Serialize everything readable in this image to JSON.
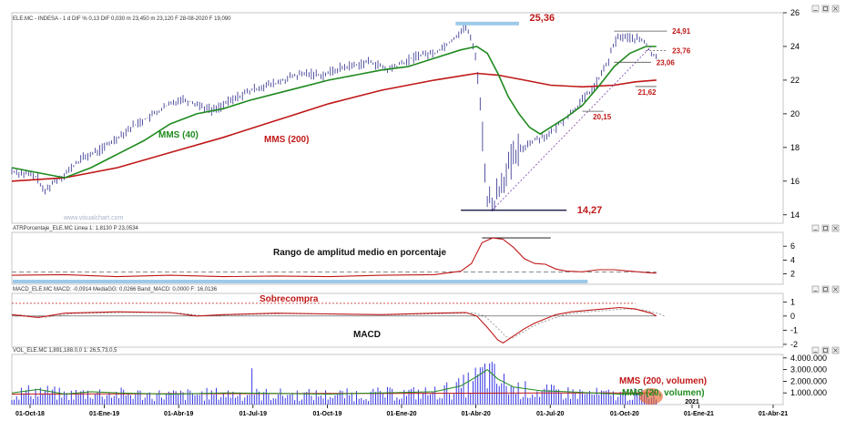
{
  "colors": {
    "price_bars": "#2a2a8a",
    "mms40": "#1f8a1f",
    "mms200": "#c01818",
    "atr": "#c01818",
    "macd": "#c01818",
    "volume": "#2020e0",
    "highlight": "#9ec9ea",
    "guide": "#000033"
  },
  "chart_data": [
    {
      "id": "price",
      "type": "bar",
      "header": "ELE.MC - INDESA - 1 d DIF % 0,13 DIF 0,030 m 23,450 m 23,120 F 28-08-2020 F 19,090",
      "ylim": [
        13.5,
        26
      ],
      "yticks": [
        "26",
        "24",
        "22",
        "20",
        "18",
        "16",
        "14"
      ],
      "watermark": "www.visualchart.com",
      "series": [
        {
          "name": "MMS (40)",
          "label_color": "#1f8a1f"
        },
        {
          "name": "MMS (200)",
          "label_color": "#c01818"
        }
      ],
      "levels": [
        {
          "label": "25,36",
          "value": 25.36
        },
        {
          "label": "24,91",
          "value": 24.91
        },
        {
          "label": "23,76",
          "value": 23.76
        },
        {
          "label": "23,06",
          "value": 23.06
        },
        {
          "label": "21,62",
          "value": 21.62
        },
        {
          "label": "20,15",
          "value": 20.15
        },
        {
          "label": "14,27",
          "value": 14.27
        }
      ],
      "price_path": [
        [
          0,
          16.6
        ],
        [
          3,
          16.4
        ],
        [
          5,
          16.2
        ],
        [
          6,
          15.3
        ],
        [
          8,
          16.0
        ],
        [
          10,
          16.4
        ],
        [
          13,
          17.3
        ],
        [
          17,
          17.9
        ],
        [
          20,
          18.6
        ],
        [
          23,
          19.3
        ],
        [
          26,
          19.8
        ],
        [
          29,
          20.4
        ],
        [
          32,
          20.9
        ],
        [
          35,
          20.6
        ],
        [
          38,
          20.2
        ],
        [
          41,
          20.7
        ],
        [
          44,
          21.2
        ],
        [
          47,
          21.6
        ],
        [
          50,
          21.8
        ],
        [
          53,
          22.2
        ],
        [
          56,
          22.4
        ],
        [
          59,
          22.3
        ],
        [
          62,
          22.7
        ],
        [
          65,
          22.9
        ],
        [
          68,
          23.1
        ],
        [
          71,
          22.6
        ],
        [
          74,
          23.0
        ],
        [
          77,
          23.5
        ],
        [
          80,
          23.6
        ],
        [
          83,
          24.3
        ],
        [
          85,
          24.9
        ],
        [
          86,
          25.2
        ],
        [
          87,
          24.3
        ],
        [
          88,
          23.2
        ],
        [
          89,
          19.0
        ],
        [
          90,
          15.0
        ],
        [
          91,
          14.5
        ],
        [
          92,
          15.5
        ],
        [
          94,
          16.8
        ],
        [
          96,
          17.8
        ],
        [
          98,
          18.3
        ],
        [
          100,
          18.6
        ],
        [
          102,
          18.8
        ],
        [
          104,
          19.5
        ],
        [
          106,
          20.1
        ],
        [
          108,
          20.8
        ],
        [
          110,
          21.5
        ],
        [
          111,
          22.0
        ],
        [
          113,
          23.2
        ],
        [
          114,
          24.2
        ],
        [
          115,
          24.6
        ],
        [
          117,
          24.5
        ],
        [
          119,
          24.4
        ],
        [
          120,
          24.2
        ],
        [
          121,
          23.6
        ],
        [
          122,
          23.3
        ]
      ],
      "mms40_path": [
        [
          0,
          16.8
        ],
        [
          5,
          16.5
        ],
        [
          10,
          16.2
        ],
        [
          15,
          16.8
        ],
        [
          20,
          17.6
        ],
        [
          25,
          18.4
        ],
        [
          30,
          19.4
        ],
        [
          35,
          20.0
        ],
        [
          40,
          20.3
        ],
        [
          45,
          20.8
        ],
        [
          50,
          21.2
        ],
        [
          55,
          21.6
        ],
        [
          60,
          22.0
        ],
        [
          65,
          22.3
        ],
        [
          70,
          22.6
        ],
        [
          75,
          22.8
        ],
        [
          80,
          23.3
        ],
        [
          85,
          23.8
        ],
        [
          88,
          24.0
        ],
        [
          90,
          23.6
        ],
        [
          92,
          22.4
        ],
        [
          94,
          21.0
        ],
        [
          96,
          20.0
        ],
        [
          98,
          19.2
        ],
        [
          100,
          18.8
        ],
        [
          102,
          19.2
        ],
        [
          105,
          19.8
        ],
        [
          108,
          20.5
        ],
        [
          111,
          21.6
        ],
        [
          114,
          22.8
        ],
        [
          117,
          23.6
        ],
        [
          120,
          24.0
        ],
        [
          122,
          24.0
        ]
      ],
      "mms200_path": [
        [
          0,
          16.0
        ],
        [
          10,
          16.2
        ],
        [
          20,
          16.8
        ],
        [
          30,
          17.7
        ],
        [
          40,
          18.6
        ],
        [
          50,
          19.6
        ],
        [
          60,
          20.6
        ],
        [
          70,
          21.4
        ],
        [
          80,
          22.0
        ],
        [
          88,
          22.4
        ],
        [
          92,
          22.3
        ],
        [
          97,
          22.0
        ],
        [
          102,
          21.7
        ],
        [
          108,
          21.6
        ],
        [
          114,
          21.7
        ],
        [
          118,
          21.9
        ],
        [
          122,
          22.0
        ]
      ]
    },
    {
      "id": "atr",
      "type": "line",
      "header": "ATRPorcentaje_ELE.MC Linea 1: 1,8130 P 23,0534",
      "ylim": [
        0.5,
        8
      ],
      "yticks": [
        "6",
        "4",
        "2"
      ],
      "annotation": "Rango de amplitud medio en porcentaje",
      "path": [
        [
          0,
          1.8
        ],
        [
          10,
          1.9
        ],
        [
          20,
          1.6
        ],
        [
          30,
          1.8
        ],
        [
          40,
          1.6
        ],
        [
          50,
          1.7
        ],
        [
          60,
          1.6
        ],
        [
          70,
          1.8
        ],
        [
          80,
          1.9
        ],
        [
          85,
          2.4
        ],
        [
          87,
          3.5
        ],
        [
          89,
          6.5
        ],
        [
          91,
          7.2
        ],
        [
          93,
          7.0
        ],
        [
          95,
          5.8
        ],
        [
          97,
          4.2
        ],
        [
          99,
          3.5
        ],
        [
          101,
          3.4
        ],
        [
          103,
          2.7
        ],
        [
          105,
          2.4
        ],
        [
          108,
          2.3
        ],
        [
          111,
          2.6
        ],
        [
          114,
          2.6
        ],
        [
          117,
          2.4
        ],
        [
          120,
          2.2
        ],
        [
          122,
          2.1
        ]
      ]
    },
    {
      "id": "macd",
      "type": "line",
      "header": "MACD_ELE.MC MACD: -0,0914 MediaGG: 0,0266 Band_MACD: 0,0000 F: 16,0136",
      "ylim": [
        -2.2,
        1.6
      ],
      "yticks": [
        "1",
        "0",
        "-1",
        "-2"
      ],
      "annotations": [
        "Sobrecompra",
        "MACD"
      ],
      "path": [
        [
          0,
          0.1
        ],
        [
          5,
          -0.1
        ],
        [
          10,
          0.2
        ],
        [
          20,
          0.3
        ],
        [
          30,
          0.25
        ],
        [
          35,
          0.0
        ],
        [
          40,
          0.1
        ],
        [
          50,
          0.2
        ],
        [
          60,
          0.15
        ],
        [
          70,
          0.1
        ],
        [
          80,
          0.2
        ],
        [
          86,
          0.25
        ],
        [
          88,
          0.0
        ],
        [
          90,
          -0.8
        ],
        [
          92,
          -1.7
        ],
        [
          93,
          -1.9
        ],
        [
          95,
          -1.4
        ],
        [
          97,
          -0.9
        ],
        [
          99,
          -0.5
        ],
        [
          101,
          -0.2
        ],
        [
          103,
          0.1
        ],
        [
          106,
          0.3
        ],
        [
          109,
          0.4
        ],
        [
          112,
          0.5
        ],
        [
          115,
          0.6
        ],
        [
          118,
          0.5
        ],
        [
          121,
          0.2
        ],
        [
          122,
          0.0
        ]
      ]
    },
    {
      "id": "volume",
      "type": "bar",
      "header": "VOL_ELE.MC 1,891,188.0,0 1: 26,5,73,0,5",
      "ylim": [
        0,
        4300000
      ],
      "yticks": [
        "4.000.000",
        "3.000.000",
        "2.000.000",
        "1.000.000"
      ],
      "series": [
        {
          "name": "MMS (200, volumen)",
          "label_color": "#c01818"
        },
        {
          "name": "MMS (20, volumen)",
          "label_color": "#1f8a1f"
        }
      ],
      "volume_envelope": [
        [
          0,
          1000000
        ],
        [
          5,
          1300000
        ],
        [
          10,
          900000
        ],
        [
          15,
          1100000
        ],
        [
          20,
          1000000
        ],
        [
          30,
          900000
        ],
        [
          40,
          1000000
        ],
        [
          50,
          950000
        ],
        [
          60,
          900000
        ],
        [
          70,
          1000000
        ],
        [
          80,
          1100000
        ],
        [
          85,
          1600000
        ],
        [
          88,
          2400000
        ],
        [
          90,
          3000000
        ],
        [
          92,
          2200000
        ],
        [
          95,
          1500000
        ],
        [
          100,
          1200000
        ],
        [
          105,
          1100000
        ],
        [
          110,
          1000000
        ],
        [
          115,
          900000
        ],
        [
          122,
          1000000
        ]
      ]
    }
  ],
  "x_axis": {
    "ticks": [
      "01-Oct-18",
      "01-Ene-19",
      "01-Abr-19",
      "01-Jul-19",
      "01-Oct-19",
      "01-Ene-20",
      "01-Abr-20",
      "01-Jul-20",
      "01-Oct-20",
      "01-Ene-21",
      "01-Abr-21"
    ],
    "year_marker": "2021"
  }
}
